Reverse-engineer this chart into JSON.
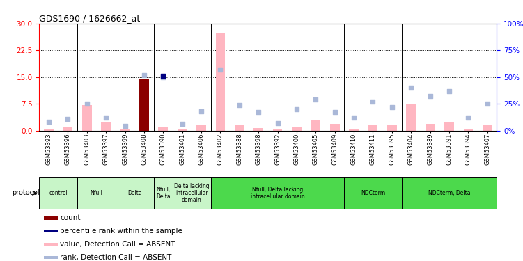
{
  "title": "GDS1690 / 1626662_at",
  "samples": [
    "GSM53393",
    "GSM53396",
    "GSM53403",
    "GSM53397",
    "GSM53399",
    "GSM53408",
    "GSM53390",
    "GSM53401",
    "GSM53406",
    "GSM53402",
    "GSM53388",
    "GSM53398",
    "GSM53392",
    "GSM53400",
    "GSM53405",
    "GSM53409",
    "GSM53410",
    "GSM53411",
    "GSM53395",
    "GSM53404",
    "GSM53389",
    "GSM53391",
    "GSM53394",
    "GSM53407"
  ],
  "value_absent": [
    0.3,
    0.8,
    7.2,
    2.3,
    0.2,
    13.5,
    0.9,
    0.4,
    1.5,
    27.5,
    1.5,
    0.6,
    0.3,
    1.0,
    2.8,
    1.8,
    0.5,
    1.5,
    1.5,
    7.5,
    1.8,
    2.5,
    0.5,
    1.5
  ],
  "rank_absent_pct": [
    8,
    11,
    25,
    12,
    4,
    52,
    50,
    6,
    18,
    57,
    24,
    17,
    7,
    20,
    29,
    17,
    12,
    27,
    22,
    40,
    32,
    37,
    12,
    25
  ],
  "count_value": [
    0,
    0,
    0,
    0,
    0,
    14.5,
    0,
    0,
    0,
    0,
    0,
    0,
    0,
    0,
    0,
    0,
    0,
    0,
    0,
    0,
    0,
    0,
    0,
    0
  ],
  "rank_present_pct": [
    0,
    0,
    0,
    0,
    0,
    0,
    51,
    0,
    0,
    0,
    0,
    0,
    0,
    0,
    0,
    0,
    0,
    0,
    0,
    0,
    0,
    0,
    0,
    0
  ],
  "protocols": [
    {
      "label": "control",
      "start": 0,
      "end": 1,
      "light": true
    },
    {
      "label": "Nfull",
      "start": 2,
      "end": 3,
      "light": true
    },
    {
      "label": "Delta",
      "start": 4,
      "end": 5,
      "light": true
    },
    {
      "label": "Nfull,\nDelta",
      "start": 6,
      "end": 6,
      "light": true
    },
    {
      "label": "Delta lacking\nintracellular\ndomain",
      "start": 7,
      "end": 8,
      "light": true
    },
    {
      "label": "Nfull, Delta lacking\nintracellular domain",
      "start": 9,
      "end": 15,
      "light": false
    },
    {
      "label": "NDCterm",
      "start": 16,
      "end": 18,
      "light": false
    },
    {
      "label": "NDCterm, Delta",
      "start": 19,
      "end": 23,
      "light": false
    }
  ],
  "group_dividers": [
    1.5,
    3.5,
    5.5,
    6.5,
    8.5,
    15.5,
    18.5
  ],
  "ylim_left": [
    0,
    30
  ],
  "ylim_right": [
    0,
    100
  ],
  "yticks_left": [
    0,
    7.5,
    15,
    22.5,
    30
  ],
  "yticks_right": [
    0,
    25,
    50,
    75,
    100
  ],
  "bar_color_absent": "#ffb6c1",
  "bar_color_count": "#8b0000",
  "dot_color_rank_absent": "#aab8d8",
  "dot_color_rank_present": "#000080",
  "color_light_green": "#c8f5c8",
  "color_dark_green": "#4cd94c",
  "legend_items": [
    {
      "color": "#8b0000",
      "label": "count"
    },
    {
      "color": "#000080",
      "label": "percentile rank within the sample"
    },
    {
      "color": "#ffb6c1",
      "label": "value, Detection Call = ABSENT"
    },
    {
      "color": "#aab8d8",
      "label": "rank, Detection Call = ABSENT"
    }
  ]
}
